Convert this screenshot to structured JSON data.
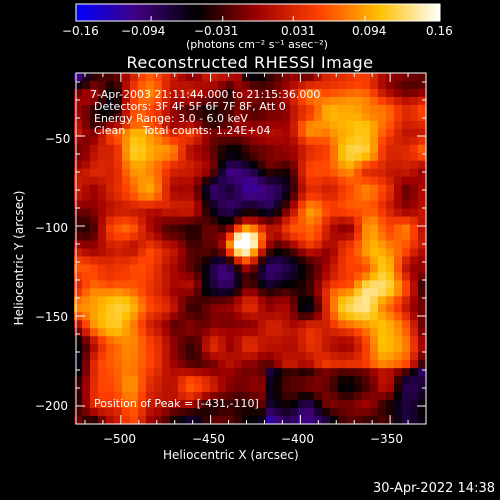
{
  "chart_data": {
    "type": "heatmap",
    "title": "Reconstructed RHESSI Image",
    "xlabel": "Heliocentric X (arcsec)",
    "ylabel": "Heliocentric Y (arcsec)",
    "xlim": [
      -525,
      -330
    ],
    "ylim": [
      -210,
      -15
    ],
    "x_ticks": [
      -500,
      -450,
      -400,
      -350
    ],
    "x_tick_labels": [
      "−500",
      "−450",
      "−400",
      "−350"
    ],
    "y_ticks": [
      -50,
      -100,
      -150,
      -200
    ],
    "y_tick_labels": [
      "−50",
      "−100",
      "−150",
      "−200"
    ],
    "colorbar": {
      "range": [
        -0.16,
        0.16
      ],
      "ticks": [
        -0.16,
        -0.094,
        -0.031,
        0.031,
        0.094,
        0.16
      ],
      "tick_labels": [
        "−0.16",
        "−0.094",
        "−0.031",
        "0.031",
        "0.094",
        "0.16"
      ],
      "units_label": "(photons cm⁻² s⁻¹ asec⁻²)",
      "colors": [
        "#0000ff",
        "#400080",
        "#000000",
        "#a00000",
        "#ff4000",
        "#ffc000",
        "#ffffff"
      ]
    },
    "peak": {
      "x": -431,
      "y": -110
    },
    "annotations": {
      "time": "7-Apr-2003 21:11:44.000 to 21:15:36.000",
      "detectors": "Detectors: 3F 4F 5F 6F 7F 8F, Att 0",
      "energy": "Energy Range: 3.0 - 6.0 keV",
      "clean": "Clean     Total counts: 1.24E+04",
      "peak_text": "Position of Peak = [-431,-110]"
    }
  },
  "footer": {
    "timestamp": "30-Apr-2022 14:38"
  }
}
